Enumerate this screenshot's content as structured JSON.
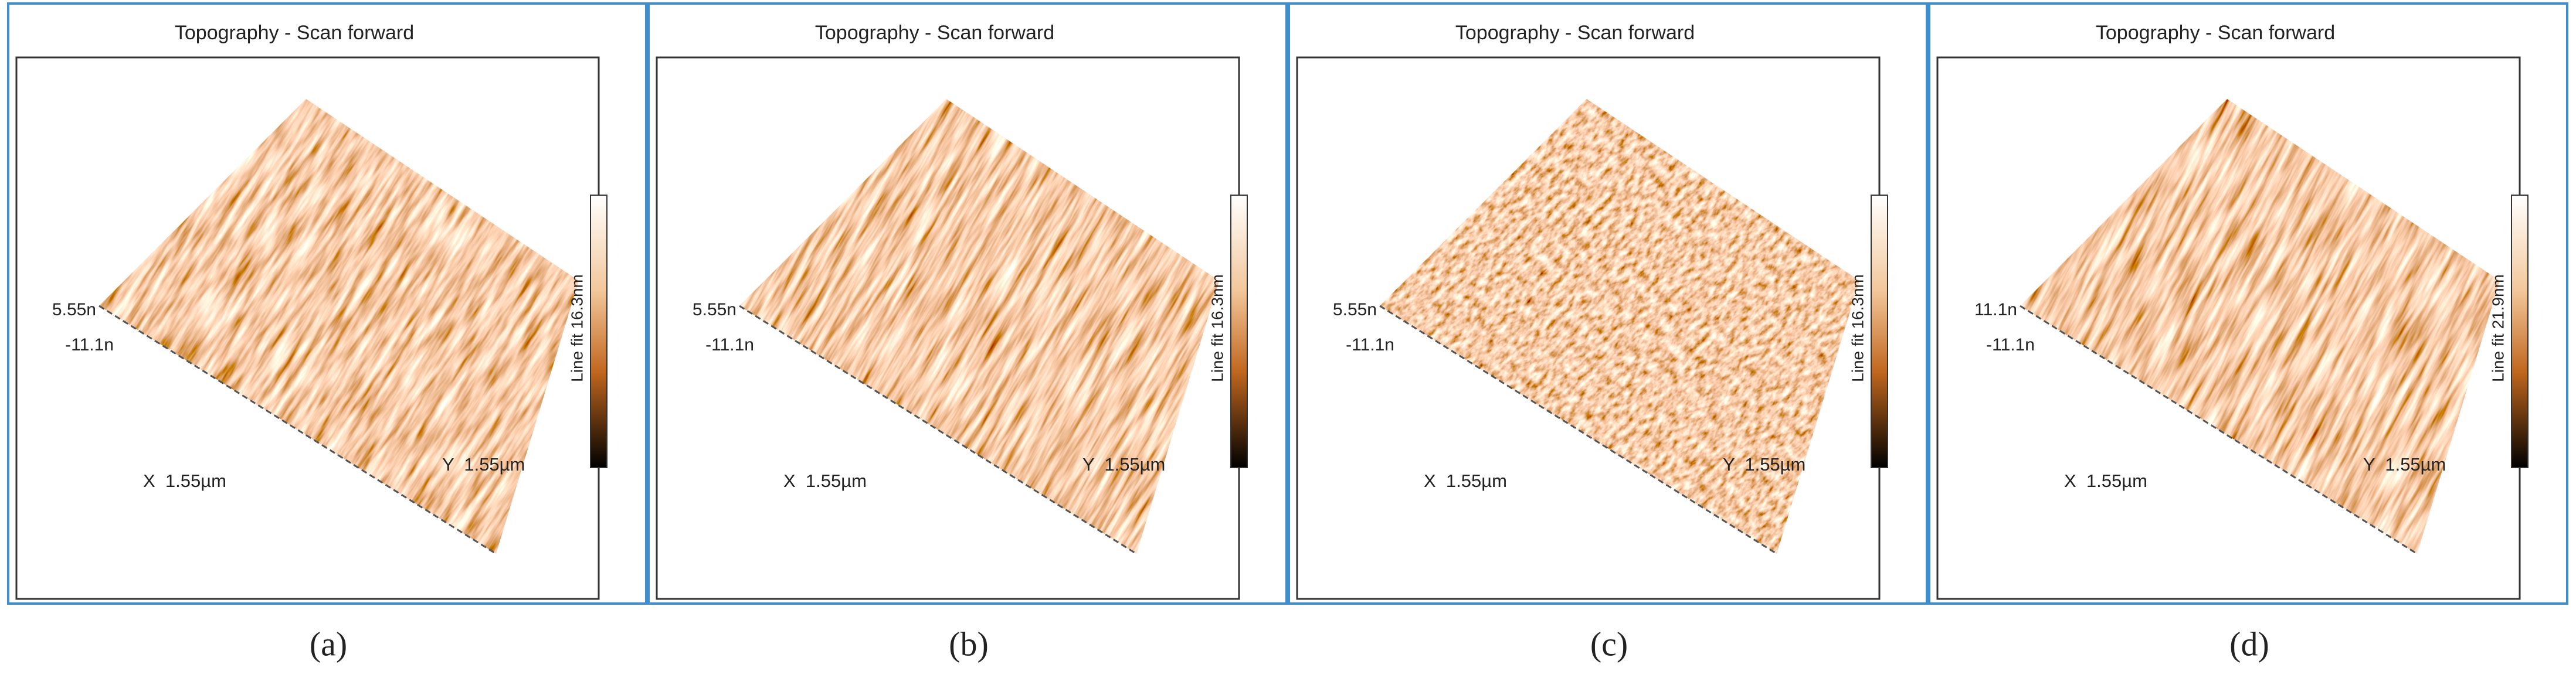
{
  "panels": [
    {
      "title": "Topography - Scan forward",
      "z_top": "5.55n",
      "z_bottom": "-11.1n",
      "x_axis": "X  1.55µm",
      "y_axis": "Y  1.55µm",
      "colorbar": "Line fit 16.3nm",
      "caption": "(a)"
    },
    {
      "title": "Topography - Scan forward",
      "z_top": "5.55n",
      "z_bottom": "-11.1n",
      "x_axis": "X  1.55µm",
      "y_axis": "Y  1.55µm",
      "colorbar": "Line fit 16.3nm",
      "caption": "(b)"
    },
    {
      "title": "Topography - Scan forward",
      "z_top": "5.55n",
      "z_bottom": "-11.1n",
      "x_axis": "X  1.55µm",
      "y_axis": "Y  1.55µm",
      "colorbar": "Line fit 16.3nm",
      "caption": "(c)"
    },
    {
      "title": "Topography - Scan forward",
      "z_top": "11.1n",
      "z_bottom": "-11.1n",
      "x_axis": "X  1.55µm",
      "y_axis": "Y  1.55µm",
      "colorbar": "Line fit 21.9nm",
      "caption": "(d)"
    }
  ]
}
